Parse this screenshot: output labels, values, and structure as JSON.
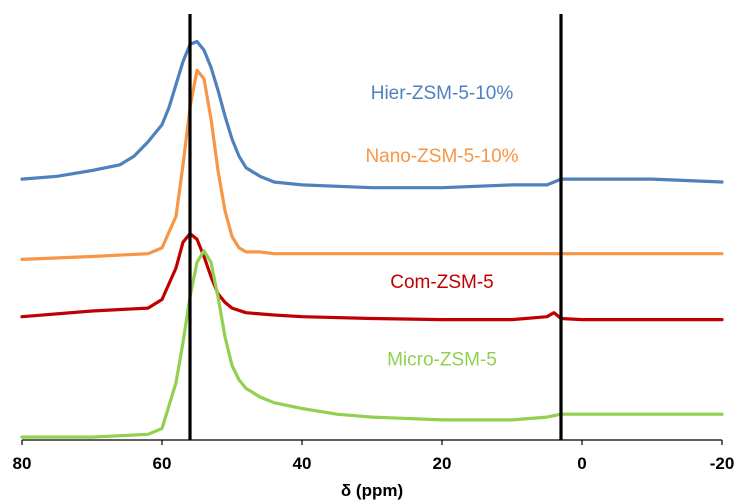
{
  "chart_data": {
    "type": "line",
    "title": "",
    "xlabel": "δ (ppm)",
    "ylabel": "",
    "x_reversed": true,
    "xlim": [
      80,
      -20
    ],
    "xticks": [
      80,
      60,
      40,
      20,
      0,
      -20
    ],
    "y_axis_shown": false,
    "grid": false,
    "legend": "inline labels next to each trace",
    "reference_lines_x": [
      56,
      3
    ],
    "reference_line_color": "#000000",
    "series": [
      {
        "name": "Hier-ZSM-5-10%",
        "color": "#4F81BD",
        "x": [
          80,
          75,
          70,
          66,
          64,
          62,
          60,
          59,
          58,
          57,
          56,
          55,
          54,
          53,
          52,
          51,
          50,
          49,
          48,
          46,
          44,
          40,
          30,
          20,
          10,
          5,
          3,
          0,
          -10,
          -20
        ],
        "y": [
          3.05,
          3.1,
          3.2,
          3.3,
          3.45,
          3.7,
          4.0,
          4.3,
          4.7,
          5.1,
          5.4,
          5.45,
          5.3,
          5.0,
          4.6,
          4.15,
          3.75,
          3.45,
          3.25,
          3.1,
          3.0,
          2.95,
          2.9,
          2.9,
          2.95,
          2.95,
          3.05,
          3.05,
          3.05,
          3.0
        ]
      },
      {
        "name": "Nano-ZSM-5-10%",
        "color": "#F79646",
        "x": [
          80,
          70,
          62,
          60,
          58,
          57,
          56,
          55,
          54,
          53,
          52,
          51,
          50,
          49,
          48,
          46,
          44,
          40,
          30,
          20,
          10,
          3,
          0,
          -10,
          -20
        ],
        "y": [
          1.65,
          1.7,
          1.75,
          1.85,
          2.4,
          3.3,
          4.3,
          4.95,
          4.8,
          4.1,
          3.2,
          2.5,
          2.05,
          1.85,
          1.78,
          1.78,
          1.75,
          1.75,
          1.75,
          1.75,
          1.75,
          1.75,
          1.75,
          1.75,
          1.75
        ]
      },
      {
        "name": "Com-ZSM-5",
        "color": "#C00000",
        "x": [
          80,
          70,
          62,
          60,
          58,
          57,
          56,
          55,
          54,
          53,
          52,
          51,
          50,
          48,
          46,
          44,
          40,
          30,
          20,
          10,
          5,
          4,
          3,
          0,
          -10,
          -20
        ],
        "y": [
          0.65,
          0.75,
          0.8,
          0.95,
          1.5,
          1.95,
          2.1,
          2.0,
          1.7,
          1.35,
          1.05,
          0.9,
          0.8,
          0.72,
          0.7,
          0.68,
          0.65,
          0.62,
          0.6,
          0.6,
          0.65,
          0.72,
          0.62,
          0.6,
          0.6,
          0.6
        ]
      },
      {
        "name": "Micro-ZSM-5",
        "color": "#92D050",
        "x": [
          80,
          70,
          62,
          60,
          58,
          57,
          56,
          55,
          54,
          53,
          52,
          51,
          50,
          49,
          48,
          46,
          44,
          40,
          35,
          30,
          20,
          10,
          5,
          3,
          0,
          -10,
          -20
        ],
        "y": [
          -1.45,
          -1.45,
          -1.4,
          -1.3,
          -0.5,
          0.2,
          1.0,
          1.6,
          1.8,
          1.6,
          1.0,
          0.3,
          -0.2,
          -0.45,
          -0.6,
          -0.75,
          -0.85,
          -0.95,
          -1.05,
          -1.1,
          -1.15,
          -1.15,
          -1.1,
          -1.05,
          -1.05,
          -1.05,
          -1.05
        ]
      }
    ],
    "label_positions": [
      {
        "x": 20,
        "y": 4.45
      },
      {
        "x": 20,
        "y": 3.35
      },
      {
        "x": 20,
        "y": 1.15
      },
      {
        "x": 20,
        "y": -0.2
      }
    ],
    "ylim": [
      -1.5,
      6.0
    ]
  }
}
